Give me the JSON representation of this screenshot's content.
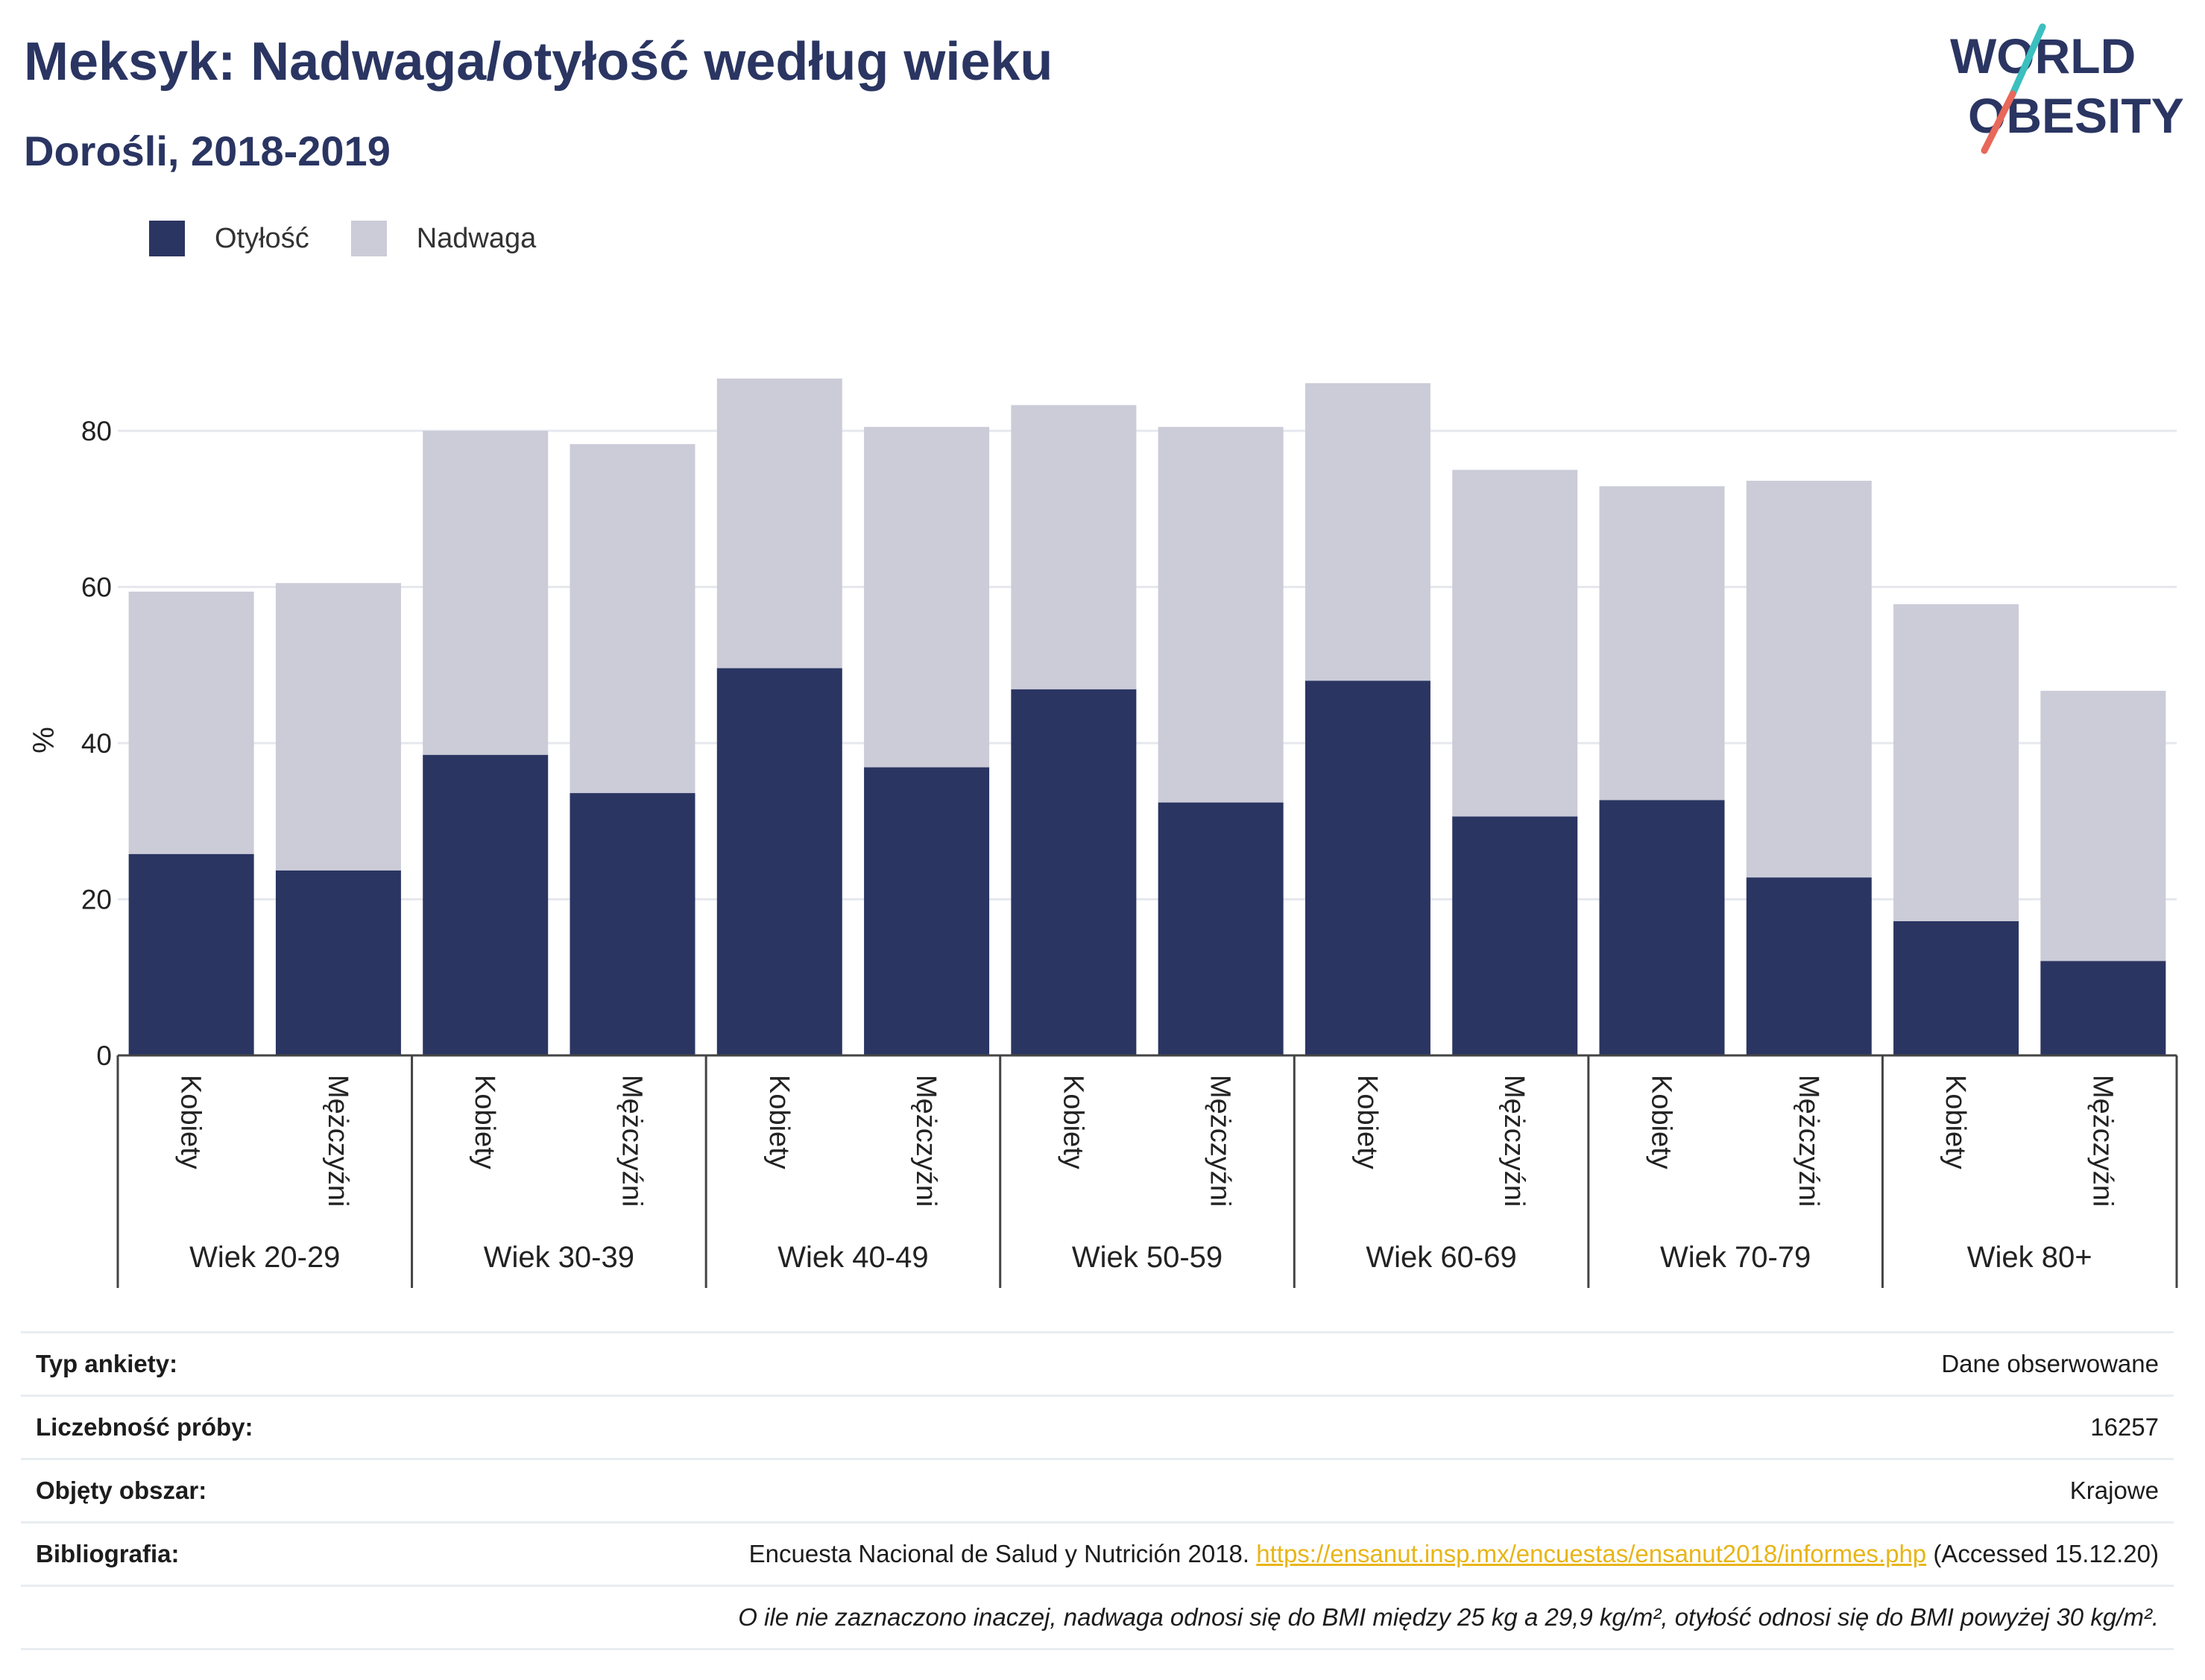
{
  "header": {
    "title": "Meksyk: Nadwaga/otyłość według wieku",
    "subtitle": "Dorośli, 2018-2019"
  },
  "logo": {
    "line1": "WORLD",
    "line2": "OBESITY",
    "colors": {
      "text": "#2a3562",
      "slash_top": "#3bbfbf",
      "slash_bottom": "#e8685a"
    }
  },
  "legend": {
    "items": [
      {
        "label": "Otyłość",
        "color": "#2b3562"
      },
      {
        "label": "Nadwaga",
        "color": "#cbccd8"
      }
    ]
  },
  "chart_data": {
    "type": "bar",
    "stacked": true,
    "ylabel": "%",
    "xlabel": "",
    "ylim": [
      0,
      90
    ],
    "yticks": [
      0,
      20,
      40,
      60,
      80
    ],
    "grid": true,
    "legend_position": "top-left",
    "groups": [
      "Wiek 20-29",
      "Wiek 30-39",
      "Wiek 40-49",
      "Wiek 50-59",
      "Wiek 60-69",
      "Wiek 70-79",
      "Wiek 80+"
    ],
    "subcategories": [
      "Kobiety",
      "Mężczyźni"
    ],
    "series": [
      {
        "name": "Otyłość",
        "color": "#2b3562",
        "values": [
          25.8,
          23.7,
          38.5,
          33.6,
          49.6,
          36.9,
          46.9,
          32.4,
          48.0,
          30.6,
          32.7,
          22.8,
          17.2,
          12.1
        ]
      },
      {
        "name": "Nadwaga",
        "color": "#cbccd8",
        "values": [
          33.6,
          36.8,
          41.5,
          44.7,
          37.1,
          43.6,
          36.4,
          48.1,
          38.1,
          44.4,
          40.2,
          50.8,
          40.6,
          34.6
        ]
      }
    ]
  },
  "info": {
    "survey_type_label": "Typ ankiety:",
    "survey_type_value": "Dane obserwowane",
    "sample_label": "Liczebność próby:",
    "sample_value": "16257",
    "area_label": "Objęty obszar:",
    "area_value": "Krajowe",
    "biblio_label": "Bibliografia:",
    "biblio_prefix": "Encuesta Nacional de Salud y Nutrición 2018. ",
    "biblio_link": "https://ensanut.insp.mx/encuestas/ensanut2018/informes.php",
    "biblio_suffix": " (Accessed 15.12.20)",
    "note": "O ile nie zaznaczono inaczej, nadwaga odnosi się do BMI między 25 kg a 29,9 kg/m², otyłość odnosi się do BMI powyżej 30 kg/m²."
  }
}
